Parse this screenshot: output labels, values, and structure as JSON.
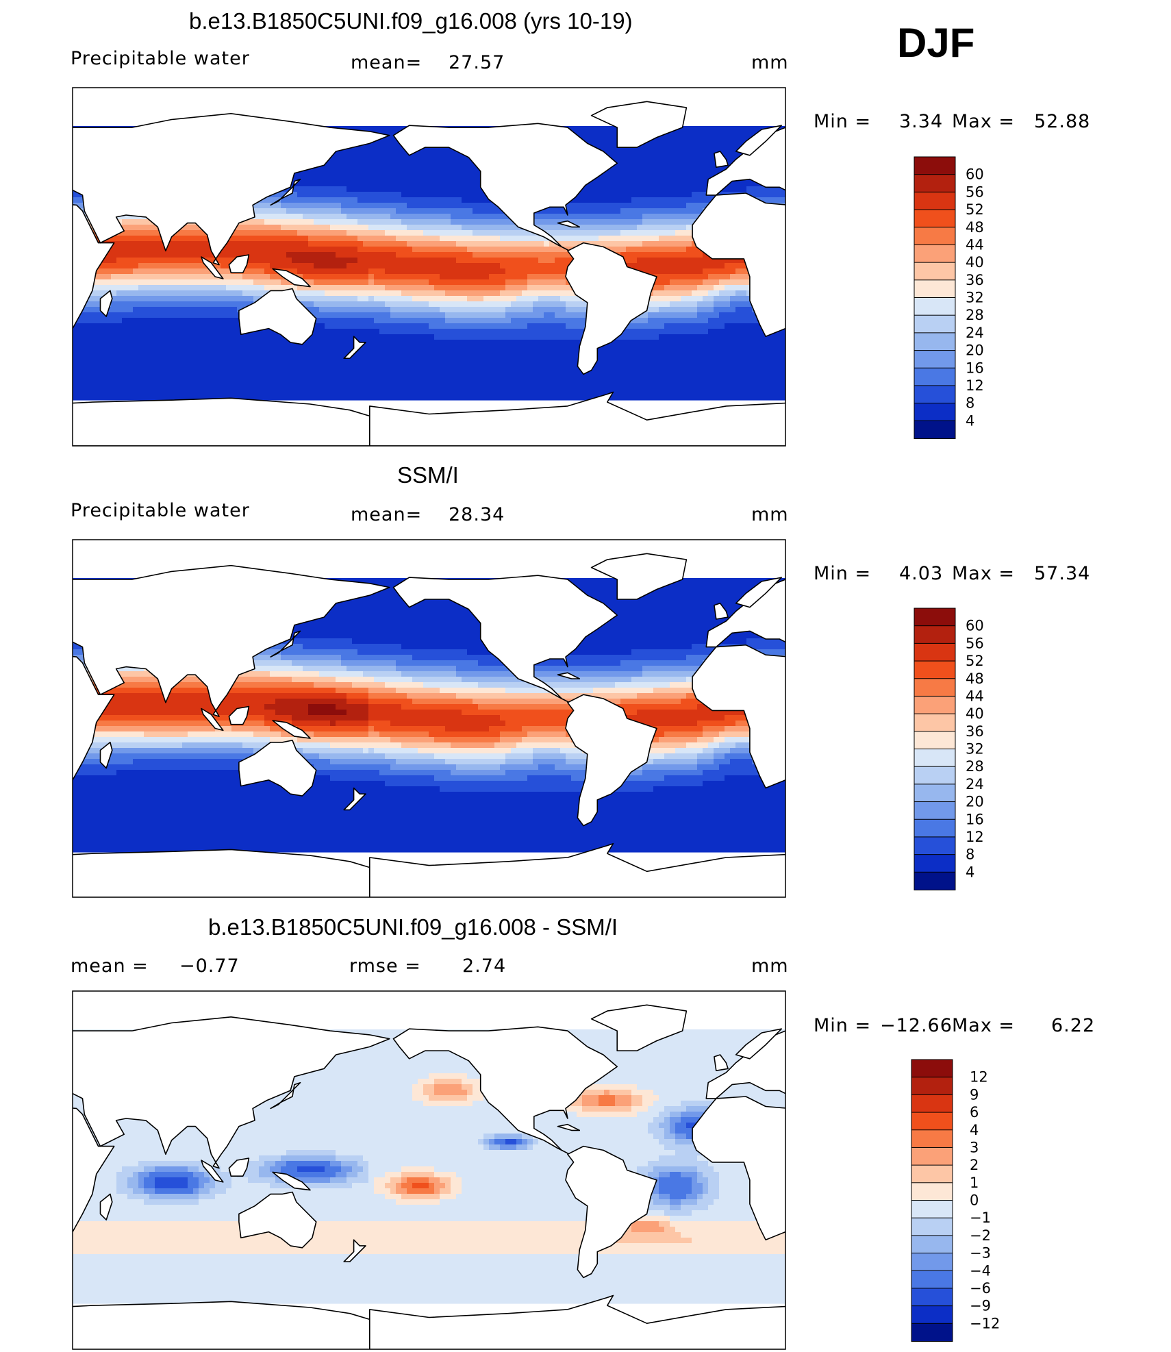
{
  "season": "DJF",
  "chart_data": [
    {
      "type": "heatmap",
      "title": "b.e13.B1850C5UNI.f09_g16.008 (yrs 10-19)",
      "variable": "Precipitable water",
      "stat_label": "mean=",
      "stat_value": "27.57",
      "units": "mm",
      "min_label": "Min =",
      "min_value": "3.34",
      "max_label": "Max =",
      "max_value": "52.88",
      "legend_levels": [
        "60",
        "56",
        "52",
        "48",
        "44",
        "40",
        "36",
        "32",
        "28",
        "24",
        "20",
        "16",
        "12",
        "8",
        "4"
      ],
      "legend_colors": [
        "#8c0d0b",
        "#b3210f",
        "#d93512",
        "#f0501c",
        "#f77a45",
        "#fba178",
        "#fdc6a6",
        "#fde7d6",
        "#d8e6f7",
        "#b9d0f3",
        "#97b7ee",
        "#7299ea",
        "#4a78e4",
        "#2650d9",
        "#0c2ec6",
        "#00128a"
      ]
    },
    {
      "type": "heatmap",
      "title": "SSM/I",
      "variable": "Precipitable water",
      "stat_label": "mean=",
      "stat_value": "28.34",
      "units": "mm",
      "min_label": "Min =",
      "min_value": "4.03",
      "max_label": "Max =",
      "max_value": "57.34",
      "legend_levels": [
        "60",
        "56",
        "52",
        "48",
        "44",
        "40",
        "36",
        "32",
        "28",
        "24",
        "20",
        "16",
        "12",
        "8",
        "4"
      ],
      "legend_colors": [
        "#8c0d0b",
        "#b3210f",
        "#d93512",
        "#f0501c",
        "#f77a45",
        "#fba178",
        "#fdc6a6",
        "#fde7d6",
        "#d8e6f7",
        "#b9d0f3",
        "#97b7ee",
        "#7299ea",
        "#4a78e4",
        "#2650d9",
        "#0c2ec6",
        "#00128a"
      ]
    },
    {
      "type": "heatmap",
      "title": "b.e13.B1850C5UNI.f09_g16.008 - SSM/I",
      "stat_label": "mean =",
      "stat_value": "−0.77",
      "stat2_label": "rmse =",
      "stat2_value": "2.74",
      "units": "mm",
      "min_label": "Min =",
      "min_value": "−12.66",
      "max_label": "Max =",
      "max_value": "6.22",
      "legend_levels": [
        "12",
        "9",
        "6",
        "4",
        "3",
        "2",
        "1",
        "0",
        "−1",
        "−2",
        "−3",
        "−4",
        "−6",
        "−9",
        "−12"
      ],
      "legend_colors": [
        "#8c0d0b",
        "#b3210f",
        "#d93512",
        "#f0501c",
        "#f77a45",
        "#fba178",
        "#fdc6a6",
        "#fde7d6",
        "#d8e6f7",
        "#b9d0f3",
        "#97b7ee",
        "#7299ea",
        "#4a78e4",
        "#2650d9",
        "#0c2ec6",
        "#00128a"
      ]
    }
  ]
}
